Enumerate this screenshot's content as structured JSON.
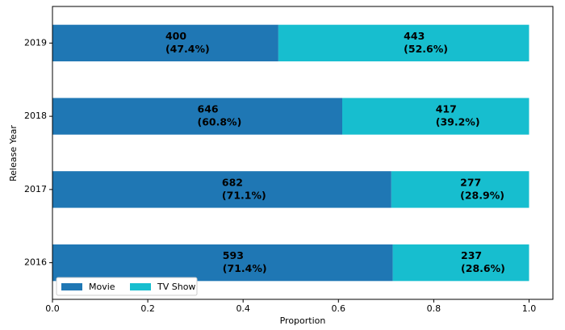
{
  "chart_data": {
    "type": "stacked-barh",
    "xlabel": "Proportion",
    "ylabel": "Release Year",
    "categories": [
      "2016",
      "2017",
      "2018",
      "2019"
    ],
    "series": [
      {
        "name": "Movie",
        "color": "#1f77b4",
        "values": [
          0.714,
          0.711,
          0.608,
          0.474
        ],
        "counts": [
          593,
          682,
          646,
          400
        ],
        "value_labels": [
          "(71.4%)",
          "(71.1%)",
          "(60.8%)",
          "(47.4%)"
        ]
      },
      {
        "name": "TV Show",
        "color": "#17becf",
        "values": [
          0.286,
          0.289,
          0.392,
          0.526
        ],
        "counts": [
          237,
          277,
          417,
          443
        ],
        "value_labels": [
          "(28.6%)",
          "(28.9%)",
          "(39.2%)",
          "(52.6%)"
        ]
      }
    ],
    "xlim": [
      0,
      1.05
    ],
    "xticks": [
      {
        "value": 0,
        "label": "0.0"
      },
      0.2,
      0.4,
      0.6,
      0.8,
      {
        "value": 1,
        "label": "1.0"
      }
    ],
    "legend": "lower left"
  }
}
